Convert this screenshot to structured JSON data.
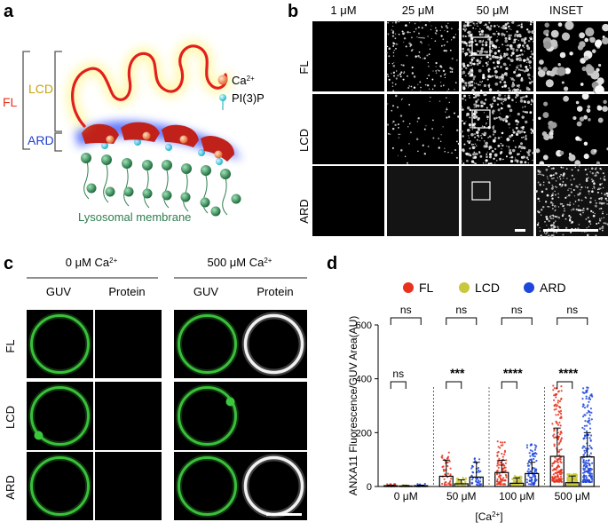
{
  "panels": {
    "a": {
      "label": "a",
      "fl": "FL",
      "lcd": "LCD",
      "ard": "ARD",
      "ca_legend": "Ca",
      "ca_sup": "2+",
      "pi3p_legend": "PI(3)P",
      "membrane": "Lysosomal membrane"
    },
    "b": {
      "label": "b",
      "cols": [
        "1 μM",
        "25 μM",
        "50 μM",
        "INSET"
      ],
      "rows": [
        "FL",
        "LCD",
        "ARD"
      ]
    },
    "c": {
      "label": "c",
      "group1": "0 μM Ca",
      "group2": "500 μM Ca",
      "sup": "2+",
      "cols": [
        "GUV",
        "Protein",
        "GUV",
        "Protein"
      ],
      "rows": [
        "FL",
        "LCD",
        "ARD"
      ]
    },
    "d": {
      "label": "d"
    }
  },
  "colors": {
    "fl": "#e8321e",
    "lcd": "#c8c83c",
    "ard": "#1e46dc",
    "membrane_green": "#2e7d4f",
    "guv_green": "#3cc83c"
  },
  "chart_data": {
    "type": "bar",
    "ylabel": "ANXA11 Fluorescence/GUV Area(AU)",
    "xlabel": "[Ca2+]",
    "xlabel_base": "[Ca",
    "xlabel_sup": "2+",
    "xlabel_end": "]",
    "categories": [
      "0 μM",
      "50 μM",
      "100 μM",
      "500 μM"
    ],
    "ylim": [
      0,
      600
    ],
    "yticks": [
      0,
      200,
      400,
      600
    ],
    "legend_position": "top",
    "series": [
      {
        "name": "FL",
        "color": "#e8321e",
        "values": [
          3,
          38,
          52,
          112
        ],
        "errors": [
          2,
          60,
          45,
          105
        ]
      },
      {
        "name": "LCD",
        "color": "#c8c83c",
        "values": [
          2,
          10,
          12,
          14
        ],
        "errors": [
          2,
          15,
          20,
          25
        ]
      },
      {
        "name": "ARD",
        "color": "#1e46dc",
        "values": [
          3,
          35,
          48,
          110
        ],
        "errors": [
          2,
          55,
          42,
          90
        ]
      }
    ],
    "significance": [
      {
        "group": "0 μM",
        "FL_vs_LCD": "ns",
        "FL_vs_ARD": "ns"
      },
      {
        "group": "50 μM",
        "FL_vs_LCD": "***",
        "FL_vs_ARD": "ns"
      },
      {
        "group": "100 μM",
        "FL_vs_LCD": "****",
        "FL_vs_ARD": "ns"
      },
      {
        "group": "500 μM",
        "FL_vs_LCD": "****",
        "FL_vs_ARD": "ns"
      }
    ]
  }
}
